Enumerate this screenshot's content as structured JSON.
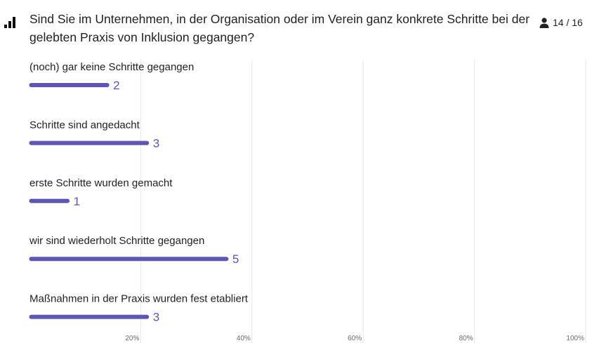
{
  "question": {
    "text": "Sind Sie im Unternehmen, in der Organisation oder im Verein ganz konkrete Schritte bei der gelebten Praxis von Inklusion gegangen?"
  },
  "responses": {
    "text": "14 / 16"
  },
  "icons": {
    "chart_type": "bar-chart-icon",
    "respondents": "person-icon"
  },
  "colors": {
    "bar": "#5b57b2",
    "value": "#5b57b2",
    "grid": "#e8e8e8"
  },
  "chart_data": {
    "type": "bar",
    "orientation": "horizontal",
    "categories": [
      "(noch) gar keine Schritte gegangen",
      "Schritte sind angedacht",
      "erste Schritte wurden gemacht",
      "wir sind wiederholt Schritte gegangen",
      "Maßnahmen in der Praxis wurden fest etabliert"
    ],
    "values": [
      2,
      3,
      1,
      5,
      3
    ],
    "xlim": [
      0,
      14
    ],
    "x_ticks": [
      "20%",
      "40%",
      "60%",
      "80%",
      "100%"
    ],
    "grid": true
  }
}
